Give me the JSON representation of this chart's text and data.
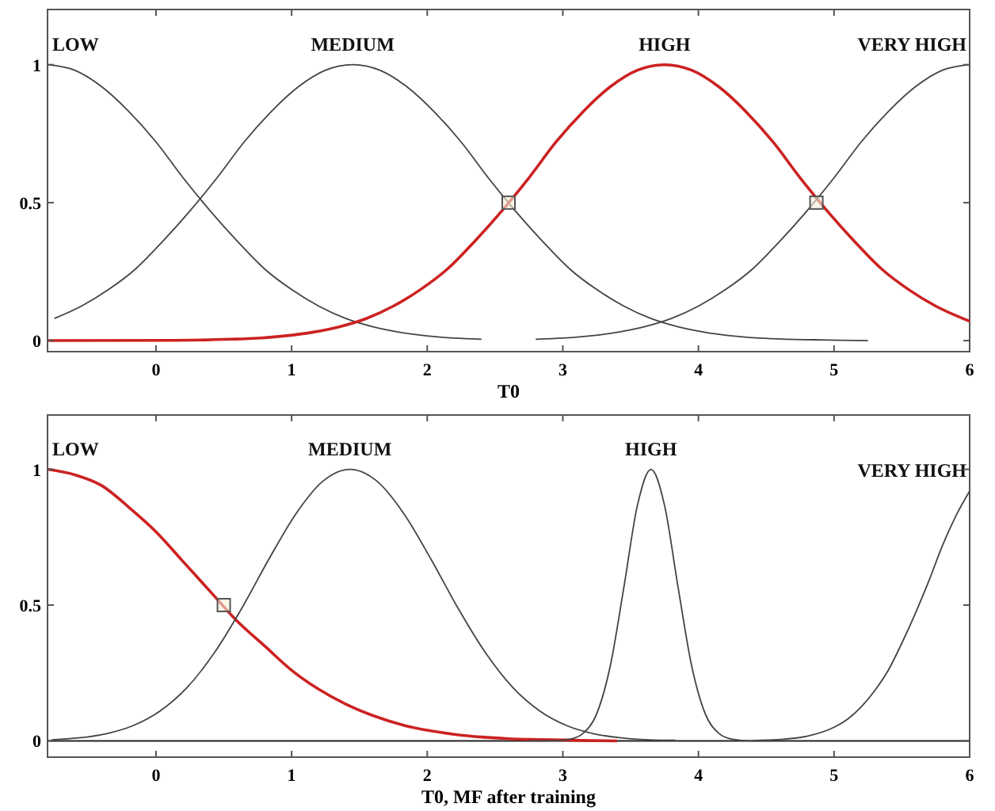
{
  "chart_data": [
    {
      "type": "line",
      "xlabel": "T0",
      "xlim": [
        -0.8,
        6
      ],
      "ylim": [
        -0.04,
        1.2
      ],
      "xticks": [
        0,
        1,
        2,
        3,
        4,
        5,
        6
      ],
      "yticks": [
        0,
        0.5,
        1
      ],
      "series": [
        {
          "name": "LOW",
          "color": "#444444",
          "x": [
            -0.8,
            -0.6,
            -0.4,
            -0.2,
            0,
            0.2,
            0.4,
            0.6,
            0.8,
            1,
            1.2,
            1.4,
            1.6,
            1.8,
            2,
            2.2,
            2.4
          ],
          "values": [
            1,
            0.98,
            0.92,
            0.83,
            0.72,
            0.59,
            0.47,
            0.36,
            0.26,
            0.185,
            0.125,
            0.08,
            0.05,
            0.03,
            0.017,
            0.009,
            0.005
          ]
        },
        {
          "name": "MEDIUM",
          "color": "#444444",
          "x": [
            -0.75,
            -0.55,
            -0.35,
            -0.15,
            0.05,
            0.25,
            0.45,
            0.65,
            0.85,
            1.05,
            1.25,
            1.45,
            1.65,
            1.85,
            2.05,
            2.25,
            2.45,
            2.65,
            2.85,
            3.05,
            3.25,
            3.45,
            3.65,
            3.85,
            4.05,
            4.25,
            4.45,
            4.65,
            4.85,
            5.05,
            5.25
          ],
          "values": [
            0.08,
            0.125,
            0.185,
            0.26,
            0.36,
            0.47,
            0.59,
            0.72,
            0.83,
            0.92,
            0.98,
            1,
            0.98,
            0.92,
            0.83,
            0.72,
            0.59,
            0.47,
            0.36,
            0.26,
            0.185,
            0.125,
            0.08,
            0.05,
            0.03,
            0.017,
            0.009,
            0.005,
            0.003,
            0.001,
            0
          ]
        },
        {
          "name": "HIGH",
          "color": "#cc2222",
          "x": [
            -0.8,
            0.15,
            0.55,
            0.75,
            0.95,
            1.15,
            1.35,
            1.55,
            1.75,
            1.95,
            2.15,
            2.35,
            2.55,
            2.75,
            2.95,
            3.15,
            3.35,
            3.55,
            3.75,
            3.95,
            4.15,
            4.35,
            4.55,
            4.75,
            4.95,
            5.15,
            5.35,
            5.55,
            5.75,
            5.95,
            6
          ],
          "values": [
            0,
            0.001,
            0.005,
            0.009,
            0.017,
            0.03,
            0.05,
            0.08,
            0.125,
            0.185,
            0.26,
            0.36,
            0.47,
            0.59,
            0.72,
            0.83,
            0.92,
            0.98,
            1,
            0.98,
            0.92,
            0.83,
            0.72,
            0.59,
            0.47,
            0.36,
            0.26,
            0.185,
            0.125,
            0.08,
            0.07
          ]
        },
        {
          "name": "VERY HIGH",
          "color": "#444444",
          "x": [
            2.8,
            3,
            3.2,
            3.4,
            3.6,
            3.8,
            4,
            4.2,
            4.4,
            4.6,
            4.8,
            5,
            5.2,
            5.4,
            5.6,
            5.8,
            6
          ],
          "values": [
            0.005,
            0.009,
            0.017,
            0.03,
            0.05,
            0.08,
            0.125,
            0.185,
            0.26,
            0.36,
            0.47,
            0.59,
            0.72,
            0.83,
            0.92,
            0.98,
            1
          ]
        },
        {
          "type": "scatter",
          "marker": "square",
          "color": "#555555",
          "x": [
            2.6,
            4.87
          ],
          "values": [
            0.5,
            0.5
          ]
        }
      ]
    },
    {
      "type": "line",
      "xlabel": "T0, MF after training",
      "xlim": [
        -0.8,
        6
      ],
      "ylim": [
        -0.06,
        1.2
      ],
      "xticks": [
        0,
        1,
        2,
        3,
        4,
        5,
        6
      ],
      "yticks": [
        0,
        0.5,
        1
      ],
      "ref_lines": [
        {
          "axis": "y",
          "value": 0,
          "color": "#222222"
        }
      ],
      "series": [
        {
          "name": "LOW",
          "color": "#cc2222",
          "x": [
            -0.8,
            -0.6,
            -0.4,
            -0.2,
            0,
            0.2,
            0.4,
            0.6,
            0.8,
            1,
            1.2,
            1.4,
            1.6,
            1.8,
            2,
            2.2,
            2.4,
            2.6,
            2.8,
            3,
            3.2,
            3.4
          ],
          "values": [
            1,
            0.98,
            0.94,
            0.86,
            0.77,
            0.66,
            0.55,
            0.44,
            0.35,
            0.26,
            0.19,
            0.135,
            0.093,
            0.061,
            0.039,
            0.024,
            0.014,
            0.008,
            0.005,
            0.003,
            0.001,
            0
          ]
        },
        {
          "name": "MEDIUM",
          "color": "#444444",
          "x": [
            -0.77,
            -0.57,
            -0.37,
            -0.17,
            0.03,
            0.23,
            0.43,
            0.63,
            0.83,
            1.03,
            1.23,
            1.43,
            1.63,
            1.83,
            2.03,
            2.23,
            2.43,
            2.63,
            2.83,
            3.03,
            3.23,
            3.43,
            3.63,
            3.83
          ],
          "values": [
            0.004,
            0.011,
            0.026,
            0.056,
            0.11,
            0.197,
            0.324,
            0.486,
            0.667,
            0.835,
            0.956,
            1,
            0.956,
            0.835,
            0.667,
            0.486,
            0.324,
            0.197,
            0.11,
            0.056,
            0.026,
            0.011,
            0.004,
            0.002
          ]
        },
        {
          "name": "HIGH",
          "color": "#444444",
          "x": [
            2.75,
            2.85,
            2.95,
            3.05,
            3.15,
            3.25,
            3.35,
            3.45,
            3.55,
            3.65,
            3.75,
            3.85,
            3.95,
            4.05,
            4.15,
            4.25,
            4.35,
            4.45,
            4.55
          ],
          "values": [
            0,
            0,
            0.001,
            0.006,
            0.028,
            0.1,
            0.276,
            0.565,
            0.867,
            1,
            0.867,
            0.565,
            0.276,
            0.1,
            0.028,
            0.006,
            0.001,
            0,
            0
          ]
        },
        {
          "name": "VERY HIGH",
          "color": "#444444",
          "x": [
            4.4,
            4.6,
            4.8,
            5,
            5.1,
            5.2,
            5.3,
            5.4,
            5.5,
            5.6,
            5.7,
            5.8,
            5.9,
            6
          ],
          "values": [
            0.001,
            0.005,
            0.017,
            0.05,
            0.08,
            0.125,
            0.185,
            0.26,
            0.36,
            0.47,
            0.59,
            0.72,
            0.83,
            0.92
          ]
        },
        {
          "type": "scatter",
          "marker": "square",
          "color": "#555555",
          "x": [
            0.5
          ],
          "values": [
            0.5
          ]
        }
      ]
    }
  ]
}
